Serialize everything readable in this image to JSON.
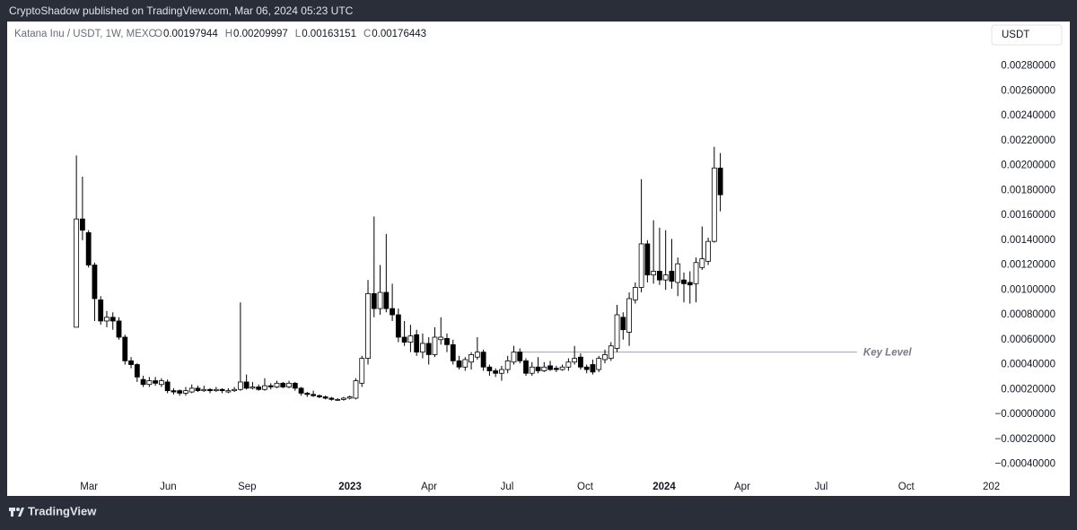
{
  "header": {
    "publisher": "CryptoShadow published on TradingView.com, Mar 06, 2024 05:23 UTC",
    "brand": "TradingView",
    "currency_button": "USDT"
  },
  "chart_data": {
    "type": "candlestick",
    "title": "Katana Inu / USDT, 1W, MEXC",
    "ohlc_letters": [
      "O",
      "H",
      "L",
      "C"
    ],
    "up_color": "#ffffff",
    "down_color": "#000000",
    "wick_color": "#000000",
    "open": [
      0.0007,
      0.00157,
      0.00146,
      0.0012,
      0.00092,
      0.00075,
      0.00078,
      0.00075,
      0.00062,
      0.00043,
      0.0004,
      0.00028,
      0.00024,
      0.00027,
      0.00024,
      0.00026,
      0.00019,
      0.00019,
      0.00017,
      0.00018,
      0.00021,
      0.00019,
      0.0002,
      0.00019,
      0.0002,
      0.00018,
      0.00019,
      0.0002,
      0.00026,
      0.00021,
      0.00022,
      0.0002,
      0.00023,
      0.00022,
      0.00025,
      0.00022,
      0.00025,
      0.00021,
      0.00017,
      0.00016,
      0.00015,
      0.00014,
      0.00013,
      0.00012,
      0.00012,
      0.00013,
      0.00013,
      0.00025,
      0.00045,
      0.00097,
      0.00085,
      0.00098,
      0.00085,
      0.0008,
      0.00062,
      0.00058,
      0.00064,
      0.0005,
      0.00057,
      0.00048,
      0.0006,
      0.00061,
      0.00056,
      0.00043,
      0.00038,
      0.00042,
      0.00046,
      0.0005,
      0.00038,
      0.00035,
      0.00033,
      0.00036,
      0.00042,
      0.0005,
      0.00043,
      0.00033,
      0.00038,
      0.00035,
      0.00039,
      0.00037,
      0.00036,
      0.00038,
      0.00042,
      0.00046,
      0.00038,
      0.0004,
      0.00036,
      0.00044,
      0.00045,
      0.00053,
      0.00078,
      0.00066,
      0.00092,
      0.00102,
      0.00137,
      0.00112,
      0.00115,
      0.00108,
      0.00115,
      0.00106,
      0.00108,
      0.00106,
      0.00105,
      0.00118,
      0.00123,
      0.00139,
      0.00197944
    ],
    "high": [
      0.00208,
      0.00191,
      0.00148,
      0.00122,
      0.00095,
      0.00083,
      0.00082,
      0.00078,
      0.00064,
      0.00046,
      0.00041,
      0.00031,
      0.0003,
      0.0003,
      0.00029,
      0.00028,
      0.00021,
      0.0002,
      0.00022,
      0.00024,
      0.00023,
      0.00023,
      0.00021,
      0.00022,
      0.00021,
      0.00021,
      0.00022,
      0.0009,
      0.00032,
      0.00026,
      0.00024,
      0.00029,
      0.00025,
      0.00027,
      0.00026,
      0.00027,
      0.00026,
      0.00022,
      0.00018,
      0.00019,
      0.00016,
      0.00015,
      0.00014,
      0.00013,
      0.00014,
      0.00015,
      0.00029,
      0.00047,
      0.00108,
      0.00159,
      0.0012,
      0.00145,
      0.00105,
      0.00085,
      0.00075,
      0.00072,
      0.00068,
      0.00065,
      0.00062,
      0.0007,
      0.00078,
      0.00065,
      0.0006,
      0.00047,
      0.00046,
      0.0005,
      0.00062,
      0.00052,
      0.0004,
      0.00037,
      0.00039,
      0.00047,
      0.00055,
      0.00053,
      0.00045,
      0.00042,
      0.00046,
      0.00042,
      0.00043,
      0.00039,
      0.0004,
      0.00045,
      0.00055,
      0.00049,
      0.0004,
      0.00044,
      0.00047,
      0.00052,
      0.00058,
      0.00088,
      0.00082,
      0.00098,
      0.00106,
      0.00189,
      0.0014,
      0.00156,
      0.0015,
      0.00148,
      0.00141,
      0.00126,
      0.00114,
      0.00115,
      0.00126,
      0.00151,
      0.00142,
      0.00215,
      0.00209997
    ],
    "low": [
      0.0007,
      0.0014,
      0.00118,
      0.00075,
      0.00072,
      0.0007,
      0.00068,
      0.0006,
      0.0004,
      0.00037,
      0.00026,
      0.00022,
      0.00022,
      0.00023,
      0.00022,
      0.00017,
      0.00016,
      0.00015,
      0.00015,
      0.00017,
      0.00018,
      0.00018,
      0.00017,
      0.00018,
      0.00017,
      0.00017,
      0.00018,
      0.00019,
      0.0002,
      0.0002,
      0.00019,
      0.00019,
      0.0002,
      0.00021,
      0.00021,
      0.00021,
      0.00019,
      0.00015,
      0.00014,
      0.00014,
      0.00013,
      0.00012,
      0.00011,
      0.00011,
      0.00011,
      0.00012,
      0.00012,
      0.00022,
      0.0004,
      0.00078,
      0.0008,
      0.00082,
      0.00075,
      0.00058,
      0.00055,
      0.0005,
      0.00047,
      0.00045,
      0.0004,
      0.00046,
      0.00056,
      0.0005,
      0.0004,
      0.00036,
      0.00035,
      0.00036,
      0.00044,
      0.00035,
      0.00031,
      0.0003,
      0.00027,
      0.00033,
      0.0004,
      0.00041,
      0.00031,
      0.00031,
      0.00033,
      0.00034,
      0.00035,
      0.00034,
      0.00035,
      0.00035,
      0.0004,
      0.00036,
      0.00033,
      0.00032,
      0.00034,
      0.00041,
      0.00043,
      0.0005,
      0.0006,
      0.00055,
      0.00089,
      0.00098,
      0.00106,
      0.00105,
      0.00104,
      0.001,
      0.00101,
      0.00095,
      0.0009,
      0.00089,
      0.0009,
      0.00116,
      0.0012,
      0.00138,
      0.00163151
    ],
    "close": [
      0.00157,
      0.00148,
      0.0012,
      0.00093,
      0.00075,
      0.00078,
      0.00075,
      0.00062,
      0.00043,
      0.0004,
      0.0003,
      0.00024,
      0.00027,
      0.00025,
      0.00027,
      0.00019,
      0.00018,
      0.00017,
      0.00019,
      0.00021,
      0.00019,
      0.0002,
      0.00019,
      0.0002,
      0.00019,
      0.00019,
      0.0002,
      0.00026,
      0.00021,
      0.00022,
      0.0002,
      0.00023,
      0.00022,
      0.00025,
      0.00022,
      0.00025,
      0.00021,
      0.00017,
      0.00016,
      0.00015,
      0.00014,
      0.00013,
      0.00012,
      0.00012,
      0.00013,
      0.00014,
      0.00027,
      0.00045,
      0.00097,
      0.00085,
      0.00098,
      0.00085,
      0.0008,
      0.00062,
      0.00058,
      0.00063,
      0.0005,
      0.00057,
      0.00048,
      0.00062,
      0.00062,
      0.00056,
      0.00043,
      0.00038,
      0.00044,
      0.00048,
      0.0005,
      0.00038,
      0.00035,
      0.00033,
      0.00036,
      0.00043,
      0.0005,
      0.00043,
      0.00033,
      0.00038,
      0.00035,
      0.00038,
      0.00036,
      0.00036,
      0.00038,
      0.00042,
      0.00045,
      0.00038,
      0.00036,
      0.00034,
      0.00045,
      0.00048,
      0.00055,
      0.0008,
      0.00068,
      0.00093,
      0.00102,
      0.00137,
      0.00112,
      0.00115,
      0.00108,
      0.00112,
      0.00107,
      0.00121,
      0.00105,
      0.00104,
      0.00122,
      0.00125,
      0.00139,
      0.00198,
      0.00176443
    ],
    "xlim": [
      -11.1,
      149.2
    ],
    "xticks": [
      {
        "value": 2.07,
        "label": "Mar"
      },
      {
        "value": 15.1,
        "label": "Jun"
      },
      {
        "value": 28.1,
        "label": "Sep"
      },
      {
        "value": 45.05,
        "label": "2023"
      },
      {
        "value": 58.05,
        "label": "Apr"
      },
      {
        "value": 70.9,
        "label": "Jul"
      },
      {
        "value": 83.75,
        "label": "Oct"
      },
      {
        "value": 96.75,
        "label": "2024"
      },
      {
        "value": 109.6,
        "label": "Apr"
      },
      {
        "value": 122.6,
        "label": "Jul"
      },
      {
        "value": 136.6,
        "label": "Oct"
      },
      {
        "value": 149.2,
        "label": "202"
      }
    ],
    "ylim": [
      -0.00049,
      0.003157
    ],
    "yticks": [
      {
        "value": 0.0028,
        "label": "0.00280000"
      },
      {
        "value": 0.0026,
        "label": "0.00260000"
      },
      {
        "value": 0.0024,
        "label": "0.00240000"
      },
      {
        "value": 0.0022,
        "label": "0.00220000"
      },
      {
        "value": 0.002,
        "label": "0.00200000"
      },
      {
        "value": 0.0018,
        "label": "0.00180000"
      },
      {
        "value": 0.0016,
        "label": "0.00160000"
      },
      {
        "value": 0.0014,
        "label": "0.00140000"
      },
      {
        "value": 0.0012,
        "label": "0.00120000"
      },
      {
        "value": 0.001,
        "label": "0.00100000"
      },
      {
        "value": 0.0008,
        "label": "0.00080000"
      },
      {
        "value": 0.0006,
        "label": "0.00060000"
      },
      {
        "value": 0.0004,
        "label": "0.00040000"
      },
      {
        "value": 0.0002,
        "label": "0.00020000"
      },
      {
        "value": 0,
        "label": "−0.00000000"
      },
      {
        "value": -0.0002,
        "label": "−0.00020000"
      },
      {
        "value": -0.0004,
        "label": "−0.00040000"
      }
    ],
    "annotation": {
      "text": "Key Level",
      "y": 0.0005,
      "x": [
        72,
        128.5
      ]
    }
  }
}
